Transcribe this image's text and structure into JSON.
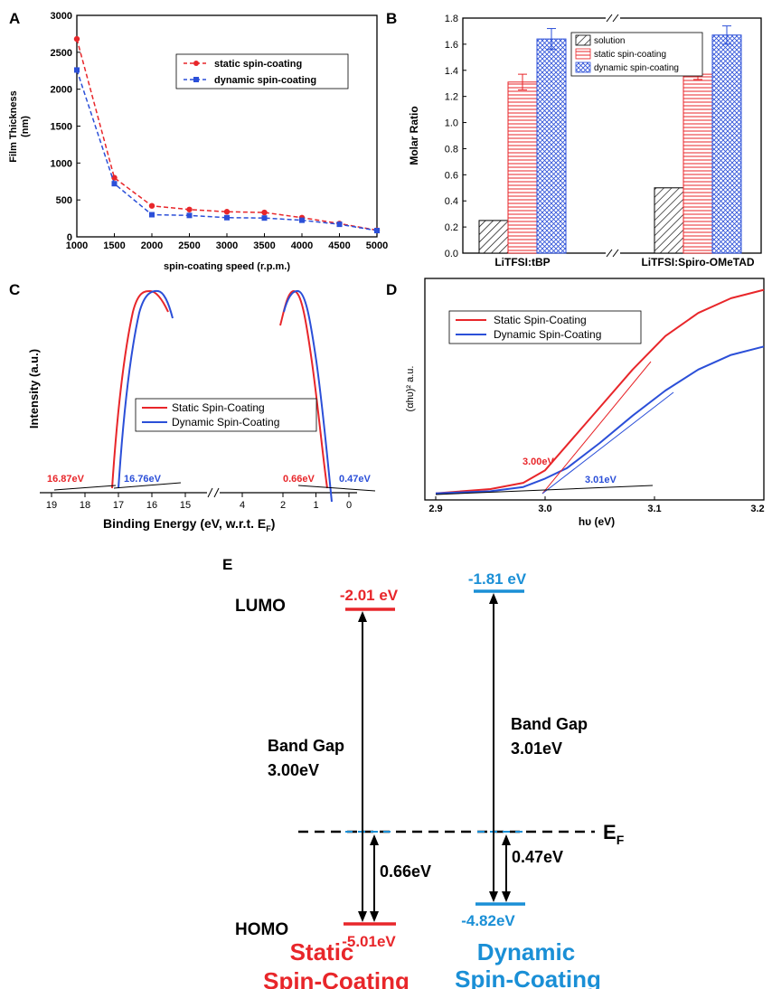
{
  "chart_data": [
    {
      "panel": "A",
      "type": "line",
      "xlabel": "spin-coating speed (r.p.m.)",
      "ylabel_line1": "Film Thickness",
      "ylabel_line2": "(nm)",
      "xlim": [
        1000,
        5000
      ],
      "ylim": [
        0,
        3000
      ],
      "xticks": [
        1000,
        1500,
        2000,
        2500,
        3000,
        3500,
        4000,
        4500,
        5000
      ],
      "yticks": [
        0,
        500,
        1000,
        1500,
        2000,
        2500,
        3000
      ],
      "legend_position": "upper-right",
      "series": [
        {
          "name": "static spin-coating",
          "color": "#e8262a",
          "marker": "circle",
          "x": [
            1000,
            1500,
            2000,
            2500,
            3000,
            3500,
            4000,
            4500,
            5000
          ],
          "y": [
            2680,
            800,
            420,
            370,
            340,
            330,
            260,
            180,
            90
          ]
        },
        {
          "name": "dynamic spin-coating",
          "color": "#2b4fd8",
          "marker": "square",
          "x": [
            1000,
            1500,
            2000,
            2500,
            3000,
            3500,
            4000,
            4500,
            5000
          ],
          "y": [
            2260,
            720,
            300,
            290,
            260,
            255,
            225,
            170,
            85
          ]
        }
      ]
    },
    {
      "panel": "B",
      "type": "bar",
      "ylabel": "Molar Ratio",
      "ylim": [
        0,
        1.8
      ],
      "yticks": [
        0.0,
        0.2,
        0.4,
        0.6,
        0.8,
        1.0,
        1.2,
        1.4,
        1.6,
        1.8
      ],
      "categories": [
        "LiTFSI:tBP",
        "LiTFSI:Spiro-OMeTAD"
      ],
      "legend_position": "top-right",
      "series": [
        {
          "name": "solution",
          "color": "#000000",
          "pattern": "diagonal-hatch",
          "values": [
            0.25,
            0.5
          ],
          "errors": [
            0,
            0
          ]
        },
        {
          "name": "static spin-coating",
          "color": "#e8262a",
          "pattern": "horizontal-lines",
          "values": [
            1.31,
            1.37
          ],
          "errors": [
            0.06,
            0.04
          ]
        },
        {
          "name": "dynamic spin-coating",
          "color": "#2b4fd8",
          "pattern": "crosshatch",
          "values": [
            1.64,
            1.67
          ],
          "errors": [
            0.08,
            0.07
          ]
        }
      ]
    },
    {
      "panel": "C",
      "type": "line",
      "xlabel": "Binding Energy (eV, w.r.t. E",
      "xlabel_sub": "F",
      "xlabel_close": ")",
      "ylabel": "Intensity (a.u.)",
      "axis_reversed": true,
      "broken_axis": true,
      "ticks_left_segment": [
        19,
        18,
        17,
        16,
        15,
        4
      ],
      "ticks_right_segment": [
        2,
        1,
        0
      ],
      "legend_position": "center",
      "series": [
        {
          "name": "Static Spin-Coating",
          "color": "#e8262a"
        },
        {
          "name": "Dynamic Spin-Coating",
          "color": "#2b4fd8"
        }
      ],
      "annotations": [
        {
          "text": "16.87eV",
          "color": "#e8262a",
          "x": 16.87
        },
        {
          "text": "16.76eV",
          "color": "#2b4fd8",
          "x": 16.76
        },
        {
          "text": "0.66eV",
          "color": "#e8262a",
          "x": 0.66
        },
        {
          "text": "0.47eV",
          "color": "#2b4fd8",
          "x": 0.47
        }
      ]
    },
    {
      "panel": "D",
      "type": "line",
      "xlabel": "hυ (eV)",
      "ylabel": "(αhυ)² a.u.",
      "xlim": [
        2.9,
        3.2
      ],
      "xticks": [
        2.9,
        3.0,
        3.1,
        3.2
      ],
      "legend_position": "upper-left",
      "series": [
        {
          "name": "Static Spin-Coating",
          "color": "#e8262a",
          "x": [
            2.9,
            2.95,
            2.98,
            3.0,
            3.02,
            3.05,
            3.08,
            3.11,
            3.14,
            3.17,
            3.2
          ],
          "y": [
            0.01,
            0.03,
            0.06,
            0.12,
            0.24,
            0.42,
            0.6,
            0.76,
            0.87,
            0.94,
            0.98
          ]
        },
        {
          "name": "Dynamic Spin-Coating",
          "color": "#2b4fd8",
          "x": [
            2.9,
            2.95,
            2.98,
            3.0,
            3.02,
            3.05,
            3.08,
            3.11,
            3.14,
            3.17,
            3.2
          ],
          "y": [
            0.01,
            0.02,
            0.04,
            0.08,
            0.13,
            0.25,
            0.38,
            0.5,
            0.6,
            0.67,
            0.71
          ]
        }
      ],
      "annotations": [
        {
          "text": "3.00eV",
          "color": "#e8262a"
        },
        {
          "text": "3.01eV",
          "color": "#2b4fd8"
        }
      ]
    },
    {
      "panel": "E",
      "type": "diagram",
      "lumo_label": "LUMO",
      "homo_label": "HOMO",
      "ef_label": "E",
      "ef_sub": "F",
      "columns": [
        {
          "title_line1": "Static",
          "title_line2": "Spin-Coating",
          "color": "#e8262a",
          "lumo": "-2.01 eV",
          "homo": "-5.01eV",
          "lumo_value": -2.01,
          "homo_value": -5.01,
          "band_gap_label": "Band Gap",
          "band_gap": "3.00eV",
          "ef_offset": "0.66eV"
        },
        {
          "title_line1": "Dynamic",
          "title_line2": "Spin-Coating",
          "color": "#1a8fd6",
          "lumo": "-1.81 eV",
          "homo": "-4.82eV",
          "lumo_value": -1.81,
          "homo_value": -4.82,
          "band_gap_label": "Band Gap",
          "band_gap": "3.01eV",
          "ef_offset": "0.47eV"
        }
      ]
    }
  ]
}
